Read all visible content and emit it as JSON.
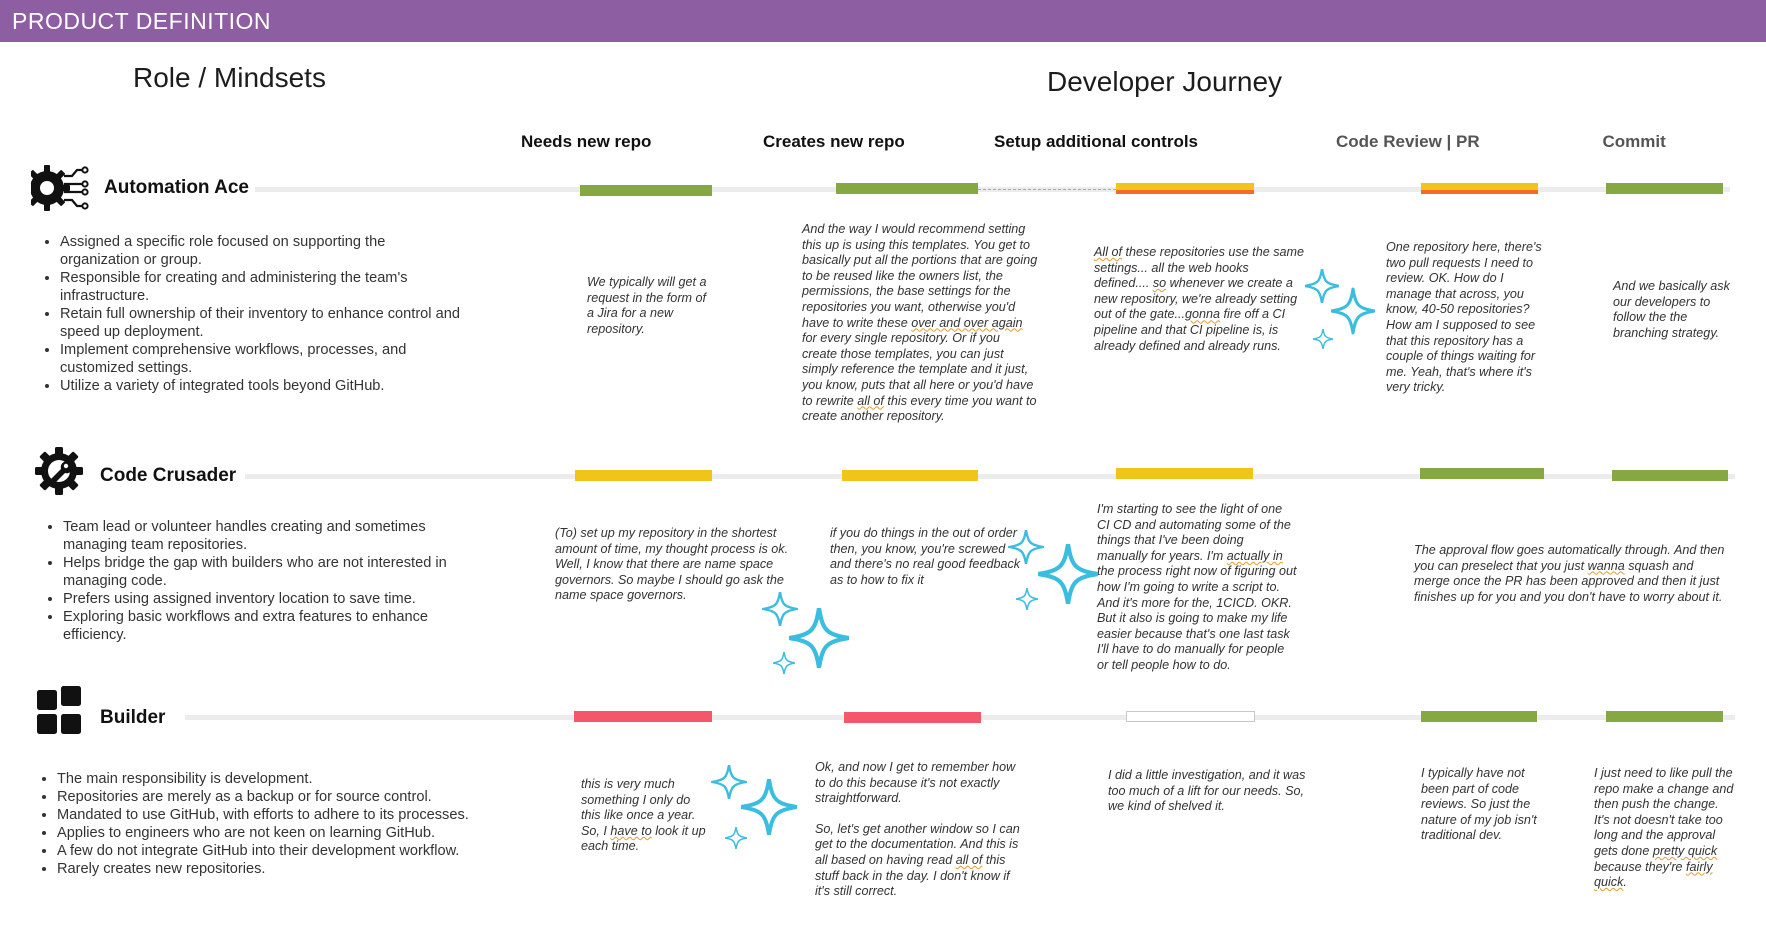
{
  "header": {
    "banner_title": "PRODUCT DEFINITION",
    "role_heading": "Role / Mindsets",
    "journey_heading": "Developer Journey"
  },
  "stages": [
    "Needs new repo",
    "Creates new repo",
    "Setup additional controls",
    "Code Review | PR",
    "Commit"
  ],
  "colors": {
    "banner": "#8e5ea2",
    "green": "#86a843",
    "yellow": "#f0c419",
    "orange": "#f36b2c",
    "red": "#f4566a",
    "sparkle": "#3bbde0"
  },
  "personas": [
    {
      "name": "Automation Ace",
      "icon": "gear-circuit-icon",
      "bullets": [
        "Assigned a specific role focused on supporting the organization or group.",
        "Responsible for creating and administering the team's infrastructure.",
        "Retain full ownership of their inventory to enhance control and speed up deployment.",
        "Implement comprehensive workflows, processes, and customized settings.",
        "Utilize a variety of integrated tools beyond GitHub."
      ],
      "stage_status": [
        "green",
        "green",
        "yellow-orange",
        "yellow-red",
        "green"
      ],
      "quotes": {
        "q1": "We typically will get a request in the form of a Jira for a new repository.",
        "q2_a": "And the way I would recommend setting this up is using this templates. You get to basically put all the portions that are going to be reused like the owners list, the permissions, the base settings for the repositories you want, otherwise you'd have to write these ",
        "q2_b": "over and over again",
        "q2_c": " for every single repository. Or if you create those templates, you can just simply reference the template and it just, you know, puts that all here or you'd have to rewrite ",
        "q2_d": "all of",
        "q2_e": " this every time you want to create another repository.",
        "q3_a": "All of",
        "q3_b": " these repositories use the same settings... all the web hooks defined.... ",
        "q3_c": "so",
        "q3_d": " whenever we create a new repository, we're already setting out of the gate...",
        "q3_e": "gonna",
        "q3_f": " fire off a CI pipeline and that CI pipeline is, is already defined and already runs.",
        "q4": "One repository here, there's two pull requests I need to review. OK. How do I manage that across, you know, 40-50 repositories? How am I supposed to see that this repository has a couple of things waiting for me. Yeah, that's where it's very tricky.",
        "q5": "And we basically ask our developers to follow the the branching strategy."
      }
    },
    {
      "name": "Code Crusader",
      "icon": "gear-wrench-icon",
      "bullets": [
        "Team lead or volunteer handles creating and sometimes managing team repositories.",
        "Helps bridge the gap with builders who are not interested in managing code.",
        "Prefers using assigned inventory location to save time.",
        "Exploring basic workflows and extra features to enhance efficiency."
      ],
      "stage_status": [
        "yellow",
        "yellow",
        "yellow",
        "green",
        "green"
      ],
      "quotes": {
        "q1": "(To) set up my repository in the shortest amount of time, my thought process is ok. Well, I know that there are name space governors. So maybe I should go ask the name space governors.",
        "q2": "if you do things in the out of order then, you know, you're screwed and there's no real good feedback as to how to fix it",
        "q3_a": "I'm starting to see the light of one CI CD and automating some of the things that I've been doing manually for years. I'm ",
        "q3_b": "actually in",
        "q3_c": " the process right now of figuring out how I'm going to write a script to. And it's more for the, 1CICD. OKR. But it also is going to make my life easier because that's one last task I'll have to do manually for people or tell people how to do.",
        "q4_a": "The approval flow goes automatically through. And then you can preselect that you just ",
        "q4_b": "wanna",
        "q4_c": " squash and merge once the PR has been approved and then it just finishes up for you and you don't have to worry about it."
      }
    },
    {
      "name": "Builder",
      "icon": "grid-blocks-icon",
      "bullets": [
        "The main responsibility is development.",
        "Repositories are merely as a backup or for source control.",
        "Mandated to use GitHub, with efforts to adhere to its processes.",
        "Applies to engineers who are not keen on learning GitHub.",
        "A few do not integrate GitHub into their development workflow.",
        "Rarely creates new repositories."
      ],
      "stage_status": [
        "red",
        "red",
        "empty",
        "green",
        "green"
      ],
      "quotes": {
        "q1_a": "this is very much something I only do this like once a year. So, I ",
        "q1_b": "have to",
        "q1_c": " look it up each time.",
        "q2_a": "Ok, and now I get to remember how to do this because it's not exactly straightforward.",
        "q2_b": "So, let's get another window so I can get to the documentation. And this is all based on having read ",
        "q2_c": "all of",
        "q2_d": " this stuff back in the day. I don't know if it's still correct.",
        "q3": "I did a little investigation, and it was too much of a lift for our needs. So, we kind of shelved it.",
        "q4": "I typically have not been part of code reviews. So just the nature of my job isn't traditional dev.",
        "q5_a": "I just need to like pull the repo make a change and then push the change. It's not doesn't take too long and the approval gets done ",
        "q5_b": "pretty quick",
        "q5_c": " because they're ",
        "q5_d": "fairly quick",
        "q5_e": "."
      }
    }
  ]
}
